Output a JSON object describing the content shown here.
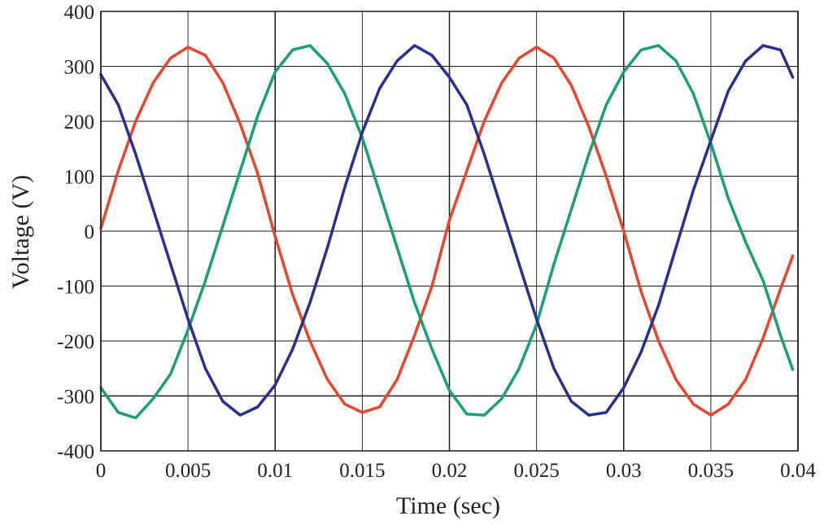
{
  "chart_data": {
    "type": "line",
    "title": "",
    "xlabel": "Time (sec)",
    "ylabel": "Voltage (V)",
    "xlim": [
      0,
      0.04
    ],
    "ylim": [
      -400,
      400
    ],
    "x_ticks": [
      0,
      0.005,
      0.01,
      0.015,
      0.02,
      0.025,
      0.03,
      0.035,
      0.04
    ],
    "x_tick_labels": [
      "0",
      "0.005",
      "0.01",
      "0.015",
      "0.02",
      "0.025",
      "0.03",
      "0.035",
      "0.04"
    ],
    "y_ticks": [
      -400,
      -300,
      -200,
      -100,
      0,
      100,
      200,
      300,
      400
    ],
    "y_tick_labels": [
      "-400",
      "-300",
      "-200",
      "-100",
      "0",
      "100",
      "200",
      "300",
      "400"
    ],
    "grid": true,
    "legend": "none",
    "x": [
      0,
      0.001,
      0.002,
      0.003,
      0.004,
      0.005,
      0.006,
      0.007,
      0.008,
      0.009,
      0.01,
      0.011,
      0.012,
      0.013,
      0.014,
      0.015,
      0.016,
      0.017,
      0.018,
      0.019,
      0.02,
      0.021,
      0.022,
      0.023,
      0.024,
      0.025,
      0.026,
      0.027,
      0.028,
      0.029,
      0.03,
      0.031,
      0.032,
      0.033,
      0.034,
      0.035,
      0.036,
      0.037,
      0.038,
      0.039,
      0.0397
    ],
    "series": [
      {
        "color": "#e8452c",
        "values": [
          5,
          110,
          200,
          270,
          315,
          335,
          320,
          270,
          195,
          105,
          -10,
          -115,
          -200,
          -270,
          -315,
          -330,
          -320,
          -270,
          -190,
          -100,
          20,
          110,
          200,
          270,
          315,
          335,
          315,
          265,
          190,
          100,
          0,
          -110,
          -200,
          -270,
          -315,
          -335,
          -315,
          -270,
          -195,
          -105,
          -45
        ]
      },
      {
        "color": "#1a9e7a",
        "values": [
          -285,
          -330,
          -340,
          -305,
          -260,
          -180,
          -90,
          10,
          110,
          210,
          290,
          330,
          338,
          305,
          250,
          170,
          70,
          -30,
          -130,
          -215,
          -290,
          -333,
          -335,
          -305,
          -250,
          -170,
          -60,
          40,
          140,
          230,
          290,
          330,
          338,
          310,
          250,
          160,
          60,
          -20,
          -90,
          -190,
          -252
        ]
      },
      {
        "color": "#2a2e8f",
        "values": [
          285,
          230,
          140,
          40,
          -60,
          -160,
          -250,
          -310,
          -335,
          -320,
          -280,
          -215,
          -130,
          -30,
          80,
          180,
          260,
          310,
          338,
          320,
          280,
          230,
          140,
          40,
          -60,
          -160,
          -250,
          -310,
          -335,
          -330,
          -285,
          -220,
          -135,
          -30,
          75,
          165,
          255,
          310,
          338,
          330,
          280
        ]
      }
    ]
  }
}
